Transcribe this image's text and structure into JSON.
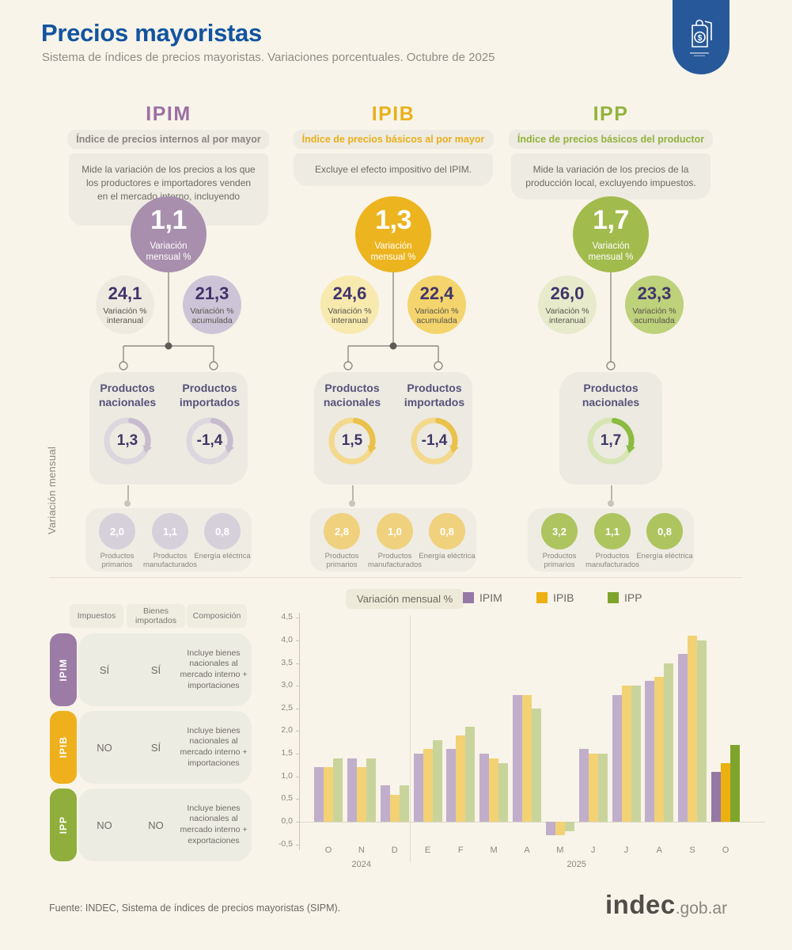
{
  "header": {
    "title": "Precios mayoristas",
    "subtitle": "Sistema de índices de precios mayoristas. Variaciones porcentuales. Octubre de 2025"
  },
  "side_label": "Variación mensual",
  "indices": [
    {
      "id": "ipim",
      "name": "IPIM",
      "definition": "Índice de precios internos al por mayor",
      "description": "Mide la variación de los precios a los que los productores e importadores venden en el mercado interno, incluyendo impuestos.",
      "monthly_value": "1,1",
      "monthly_label": "Variación mensual %",
      "interannual_value": "24,1",
      "interannual_label": "Variación % interanual",
      "accumulated_value": "21,3",
      "accumulated_label": "Variación % acumulada",
      "products": [
        {
          "label": "Productos nacionales",
          "value": "1,3"
        },
        {
          "label": "Productos importados",
          "value": "-1,4"
        }
      ],
      "breakdown": [
        {
          "label": "Productos primarios",
          "value": "2,0"
        },
        {
          "label": "Productos manufacturados",
          "value": "1,1"
        },
        {
          "label": "Energía eléctrica",
          "value": "0,8"
        }
      ],
      "colors": {
        "title": "#9c6fa4",
        "definition": "#8b8680",
        "big_circle": "#a88fad",
        "interannual_bg": "#efeae0",
        "accumulated_bg": "#cdc5d7",
        "ring": "#dcd6de",
        "arc": "#c6bccd",
        "breakdown_circle": "#d6d0db",
        "tab": "#9c7ba6"
      }
    },
    {
      "id": "ipib",
      "name": "IPIB",
      "definition": "Índice de precios básicos al por mayor",
      "description": "Excluye el efecto impositivo del IPIM.",
      "monthly_value": "1,3",
      "monthly_label": "Variación mensual %",
      "interannual_value": "24,6",
      "interannual_label": "Variación % interanual",
      "accumulated_value": "22,4",
      "accumulated_label": "Variación % acumulada",
      "products": [
        {
          "label": "Productos nacionales",
          "value": "1,5"
        },
        {
          "label": "Productos importados",
          "value": "-1,4"
        }
      ],
      "breakdown": [
        {
          "label": "Productos primarios",
          "value": "2,8"
        },
        {
          "label": "Productos manufacturados",
          "value": "1,0"
        },
        {
          "label": "Energía eléctrica",
          "value": "0,8"
        }
      ],
      "colors": {
        "title": "#e9b01b",
        "definition": "#e9b01b",
        "big_circle": "#ecb41f",
        "interannual_bg": "#f8e9af",
        "accumulated_bg": "#f4d46d",
        "ring": "#f4d88c",
        "arc": "#eac14a",
        "breakdown_circle": "#f0d17e",
        "tab": "#eeb01c"
      }
    },
    {
      "id": "ipp",
      "name": "IPP",
      "definition": "Índice de precios básicos del productor",
      "description": "Mide la variación de los precios de la producción local, excluyendo impuestos.",
      "monthly_value": "1,7",
      "monthly_label": "Variación mensual %",
      "interannual_value": "26,0",
      "interannual_label": "Variación % interanual",
      "accumulated_value": "23,3",
      "accumulated_label": "Variación % acumulada",
      "products": [
        {
          "label": "Productos nacionales",
          "value": "1,7"
        }
      ],
      "breakdown": [
        {
          "label": "Productos primarios",
          "value": "3,2"
        },
        {
          "label": "Productos manufacturados",
          "value": "1,1"
        },
        {
          "label": "Energía eléctrica",
          "value": "0,8"
        }
      ],
      "colors": {
        "title": "#93b23c",
        "definition": "#93b23c",
        "big_circle": "#a2bb4d",
        "interannual_bg": "#e7ebcb",
        "accumulated_bg": "#bed17b",
        "ring": "#d7e5b4",
        "arc": "#8bbb40",
        "breakdown_circle": "#aec45f",
        "tab": "#8fae3b"
      }
    }
  ],
  "table": {
    "headers": [
      "Impuestos",
      "Bienes importados",
      "Composición"
    ],
    "rows": [
      {
        "name": "IPIM",
        "impuestos": "SÍ",
        "bienes_importados": "SÍ",
        "composicion": "Incluye bienes nacionales al mercado interno + importaciones"
      },
      {
        "name": "IPIB",
        "impuestos": "NO",
        "bienes_importados": "SÍ",
        "composicion": "Incluye bienes nacionales al mercado interno + importaciones"
      },
      {
        "name": "IPP",
        "impuestos": "NO",
        "bienes_importados": "NO",
        "composicion": "Incluye bienes nacionales al mercado interno + exportaciones"
      }
    ]
  },
  "chart_data": {
    "type": "bar",
    "title": "Variación mensual %",
    "categories": [
      "O",
      "N",
      "D",
      "E",
      "F",
      "M",
      "A",
      "M",
      "J",
      "J",
      "A",
      "S",
      "O"
    ],
    "year_labels": [
      {
        "label": "2024",
        "from": 0,
        "to": 2
      },
      {
        "label": "2025",
        "from": 3,
        "to": 12
      }
    ],
    "series": [
      {
        "name": "IPIM",
        "color": "#c0aecb",
        "highlight_color": "#9678a6",
        "values": [
          1.2,
          1.4,
          0.8,
          1.5,
          1.6,
          1.5,
          2.8,
          -0.3,
          1.6,
          2.8,
          3.1,
          3.7,
          1.1
        ]
      },
      {
        "name": "IPIB",
        "color": "#f3d175",
        "highlight_color": "#edb011",
        "values": [
          1.2,
          1.2,
          0.6,
          1.6,
          1.9,
          1.4,
          2.8,
          -0.3,
          1.5,
          3.0,
          3.2,
          4.1,
          1.3
        ]
      },
      {
        "name": "IPP",
        "color": "#c9d49c",
        "highlight_color": "#7fa42b",
        "values": [
          1.4,
          1.4,
          0.8,
          1.8,
          2.1,
          1.3,
          2.5,
          -0.2,
          1.5,
          3.0,
          3.5,
          4.0,
          1.7
        ]
      }
    ],
    "ylim": [
      -0.5,
      4.5
    ],
    "ytick_step": 0.5,
    "highlight_index": 12,
    "legend_position": "top",
    "grid": false
  },
  "footer": {
    "source": "Fuente: INDEC, Sistema de índices de precios mayoristas (SIPM).",
    "logo": "indec",
    "logo_suffix": ".gob.ar"
  }
}
